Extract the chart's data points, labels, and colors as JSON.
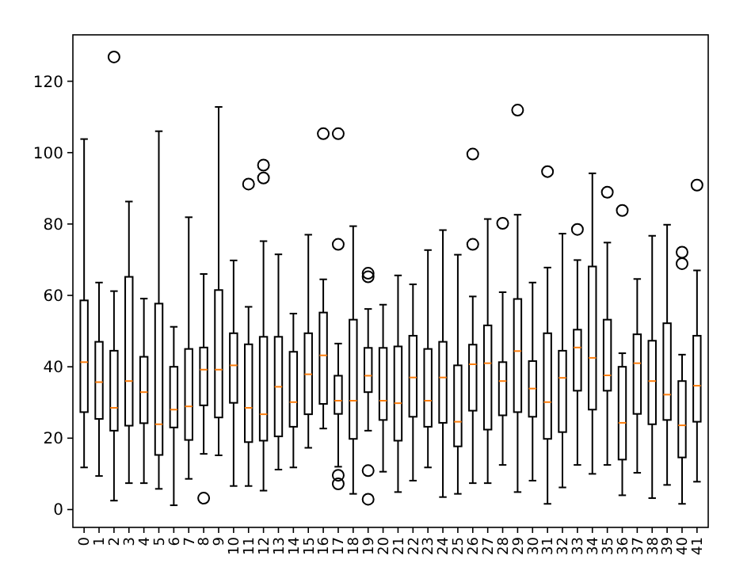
{
  "chart_data": {
    "type": "box",
    "categories": [
      "0",
      "1",
      "2",
      "3",
      "4",
      "5",
      "6",
      "7",
      "8",
      "9",
      "10",
      "11",
      "12",
      "13",
      "14",
      "15",
      "16",
      "17",
      "18",
      "19",
      "20",
      "21",
      "22",
      "23",
      "24",
      "25",
      "26",
      "27",
      "28",
      "29",
      "30",
      "31",
      "32",
      "33",
      "34",
      "35",
      "36",
      "37",
      "38",
      "39",
      "40",
      "41"
    ],
    "color": "#000000",
    "ylim": [
      -5,
      133
    ],
    "yticks": [
      0,
      20,
      40,
      60,
      80,
      100,
      120
    ],
    "grid": false,
    "boxes": [
      {
        "low": 11.8,
        "q1": 27.3,
        "median": 41.3,
        "q3": 58.6,
        "high": 103.8
      },
      {
        "low": 9.4,
        "q1": 25.4,
        "median": 35.7,
        "q3": 47,
        "high": 63.6
      },
      {
        "low": 2.5,
        "q1": 22.1,
        "median": 28.5,
        "q3": 44.5,
        "high": 61.2,
        "outliers": [
          126.8
        ]
      },
      {
        "low": 7.4,
        "q1": 23.5,
        "median": 36,
        "q3": 65.2,
        "high": 86.3
      },
      {
        "low": 7.4,
        "q1": 24.2,
        "median": 32.9,
        "q3": 42.8,
        "high": 59.1
      },
      {
        "low": 5.8,
        "q1": 15.3,
        "median": 23.9,
        "q3": 57.7,
        "high": 106
      },
      {
        "low": 1.2,
        "q1": 23,
        "median": 28,
        "q3": 40,
        "high": 51.2
      },
      {
        "low": 8.6,
        "q1": 19.5,
        "median": 28.9,
        "q3": 45,
        "high": 81.9
      },
      {
        "low": 15.6,
        "q1": 29.2,
        "median": 39.2,
        "q3": 45.4,
        "high": 66,
        "outliers": [
          3.2
        ]
      },
      {
        "low": 15.2,
        "q1": 25.8,
        "median": 39.2,
        "q3": 61.5,
        "high": 112.8
      },
      {
        "low": 6.6,
        "q1": 29.9,
        "median": 40.4,
        "q3": 49.4,
        "high": 69.8
      },
      {
        "low": 6.6,
        "q1": 18.9,
        "median": 28.5,
        "q3": 46.3,
        "high": 56.8,
        "outliers": [
          91.2
        ]
      },
      {
        "low": 5.3,
        "q1": 19.3,
        "median": 26.7,
        "q3": 48.4,
        "high": 75.2,
        "outliers": [
          96.5,
          92.9
        ]
      },
      {
        "low": 11.2,
        "q1": 20.5,
        "median": 34.4,
        "q3": 48.4,
        "high": 71.5
      },
      {
        "low": 11.8,
        "q1": 23.2,
        "median": 30.1,
        "q3": 44.2,
        "high": 54.9
      },
      {
        "low": 17.3,
        "q1": 26.7,
        "median": 37.9,
        "q3": 49.4,
        "high": 77
      },
      {
        "low": 22.7,
        "q1": 29.6,
        "median": 43.2,
        "q3": 55.2,
        "high": 64.5,
        "outliers": [
          105.3
        ]
      },
      {
        "low": 12,
        "q1": 26.8,
        "median": 30.5,
        "q3": 37.5,
        "high": 46.5,
        "outliers": [
          105.3,
          74.3,
          9.6,
          7.2
        ]
      },
      {
        "low": 4.4,
        "q1": 19.8,
        "median": 30.5,
        "q3": 53.2,
        "high": 79.4
      },
      {
        "low": 22.1,
        "q1": 32.9,
        "median": 37.5,
        "q3": 45.3,
        "high": 56.2,
        "outliers": [
          66.2,
          65.2,
          10.9,
          2.9
        ]
      },
      {
        "low": 10.6,
        "q1": 25.1,
        "median": 30.5,
        "q3": 45.3,
        "high": 57.4
      },
      {
        "low": 4.9,
        "q1": 19.3,
        "median": 29.8,
        "q3": 45.7,
        "high": 65.6
      },
      {
        "low": 8.1,
        "q1": 26,
        "median": 37,
        "q3": 48.7,
        "high": 63.1
      },
      {
        "low": 11.8,
        "q1": 23.2,
        "median": 30.5,
        "q3": 45,
        "high": 72.7
      },
      {
        "low": 3.5,
        "q1": 24.3,
        "median": 37,
        "q3": 47,
        "high": 78.3
      },
      {
        "low": 4.4,
        "q1": 17.7,
        "median": 24.6,
        "q3": 40.4,
        "high": 71.4
      },
      {
        "low": 7.4,
        "q1": 27.7,
        "median": 40.7,
        "q3": 46.2,
        "high": 59.7,
        "outliers": [
          99.6,
          74.3
        ]
      },
      {
        "low": 7.4,
        "q1": 22.4,
        "median": 41,
        "q3": 51.6,
        "high": 81.4
      },
      {
        "low": 12.5,
        "q1": 26.4,
        "median": 36,
        "q3": 41.3,
        "high": 60.9,
        "outliers": [
          80.2
        ]
      },
      {
        "low": 4.9,
        "q1": 27.3,
        "median": 44.4,
        "q3": 59,
        "high": 82.6,
        "outliers": [
          111.9
        ]
      },
      {
        "low": 8.1,
        "q1": 26,
        "median": 33.9,
        "q3": 41.6,
        "high": 63.6
      },
      {
        "low": 1.6,
        "q1": 19.8,
        "median": 30.1,
        "q3": 49.4,
        "high": 67.8,
        "outliers": [
          94.7
        ]
      },
      {
        "low": 6.2,
        "q1": 21.7,
        "median": 36.9,
        "q3": 44.5,
        "high": 77.3
      },
      {
        "low": 12.5,
        "q1": 33.3,
        "median": 45.4,
        "q3": 50.4,
        "high": 69.9,
        "outliers": [
          78.5
        ]
      },
      {
        "low": 10,
        "q1": 28,
        "median": 42.5,
        "q3": 68.1,
        "high": 94.2
      },
      {
        "low": 12.5,
        "q1": 33.3,
        "median": 37.6,
        "q3": 53.2,
        "high": 74.8,
        "outliers": [
          88.9
        ]
      },
      {
        "low": 4,
        "q1": 14,
        "median": 24.3,
        "q3": 40,
        "high": 43.8,
        "outliers": [
          83.8
        ]
      },
      {
        "low": 10.3,
        "q1": 26.8,
        "median": 41,
        "q3": 49.1,
        "high": 64.6
      },
      {
        "low": 3.2,
        "q1": 23.9,
        "median": 36,
        "q3": 47.3,
        "high": 76.7
      },
      {
        "low": 6.9,
        "q1": 25.1,
        "median": 32.2,
        "q3": 52.2,
        "high": 79.8
      },
      {
        "low": 1.6,
        "q1": 14.6,
        "median": 23.6,
        "q3": 36,
        "high": 43.4,
        "outliers": [
          72.1,
          68.9
        ]
      },
      {
        "low": 7.8,
        "q1": 24.6,
        "median": 34.7,
        "q3": 48.7,
        "high": 67,
        "outliers": [
          90.9
        ]
      }
    ]
  }
}
